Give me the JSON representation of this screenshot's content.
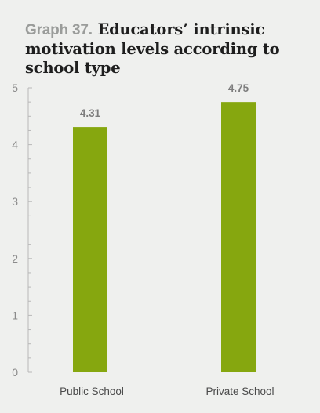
{
  "title": {
    "prefix": "Graph 37.",
    "text": "Educators’ intrinsic motivation levels according to school type"
  },
  "colors": {
    "bar": "#86a70f",
    "axis": "#b8b8b8",
    "background": "#eff0ee"
  },
  "chart_data": {
    "type": "bar",
    "title": "Graph 37. Educators’ intrinsic motivation levels according to school type",
    "categories": [
      "Public School",
      "Private School"
    ],
    "values": [
      4.31,
      4.75
    ],
    "data_labels": [
      "4.31",
      "4.75"
    ],
    "xlabel": "",
    "ylabel": "",
    "ylim": [
      0,
      5
    ],
    "yticks": [
      0,
      1,
      2,
      3,
      4,
      5
    ],
    "grid": false,
    "legend": "none"
  }
}
